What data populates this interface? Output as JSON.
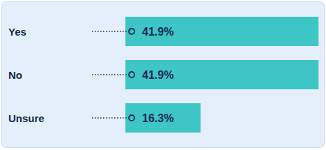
{
  "chart_data": {
    "type": "bar",
    "orientation": "horizontal",
    "categories": [
      "Yes",
      "No",
      "Unsure"
    ],
    "values": [
      41.9,
      41.9,
      16.3
    ],
    "value_labels": [
      "41.9%",
      "41.9%",
      "16.3%"
    ],
    "color": "#3ec5c6",
    "xlim": [
      0,
      42
    ],
    "data_labels": true,
    "tick_labels": "y",
    "grid": false
  }
}
